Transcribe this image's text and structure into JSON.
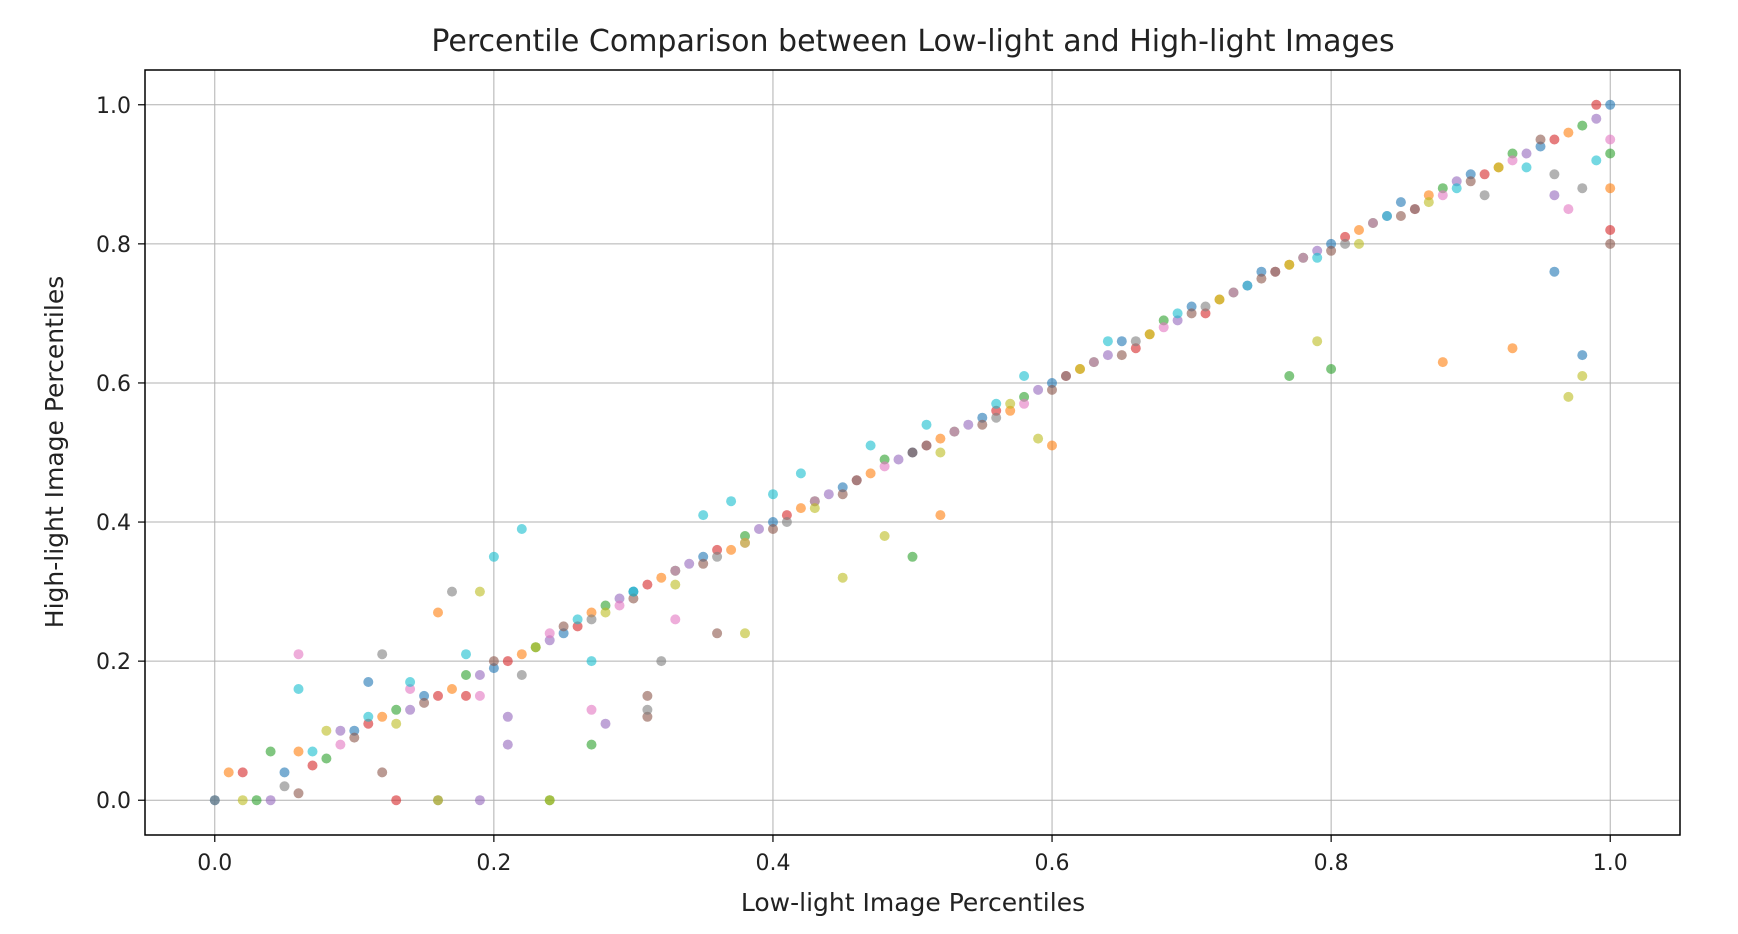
{
  "chart_data": {
    "type": "scatter",
    "title": "Percentile Comparison between Low-light and High-light Images",
    "xlabel": "Low-light Image Percentiles",
    "ylabel": "High-light Image Percentiles",
    "xlim": [
      -0.05,
      1.05
    ],
    "ylim": [
      -0.05,
      1.05
    ],
    "xticks": [
      "0.0",
      "0.2",
      "0.4",
      "0.6",
      "0.8",
      "1.0"
    ],
    "yticks": [
      "0.0",
      "0.2",
      "0.4",
      "0.6",
      "0.8",
      "1.0"
    ],
    "grid": true,
    "legend": "none",
    "colors": [
      "#1f77b4",
      "#ff7f0e",
      "#2ca02c",
      "#d62728",
      "#9467bd",
      "#8c564b",
      "#e377c2",
      "#7f7f7f",
      "#bcbd22",
      "#17becf"
    ],
    "series": [
      {
        "values": [
          [
            0.0,
            0.0
          ],
          [
            0.05,
            0.04
          ],
          [
            0.1,
            0.1
          ],
          [
            0.15,
            0.15
          ],
          [
            0.2,
            0.19
          ],
          [
            0.25,
            0.24
          ],
          [
            0.3,
            0.3
          ],
          [
            0.35,
            0.35
          ],
          [
            0.4,
            0.4
          ],
          [
            0.45,
            0.45
          ],
          [
            0.5,
            0.5
          ],
          [
            0.55,
            0.55
          ],
          [
            0.6,
            0.6
          ],
          [
            0.65,
            0.66
          ],
          [
            0.7,
            0.71
          ],
          [
            0.75,
            0.76
          ],
          [
            0.8,
            0.8
          ],
          [
            0.85,
            0.86
          ],
          [
            0.9,
            0.9
          ],
          [
            0.95,
            0.94
          ],
          [
            1.0,
            1.0
          ],
          [
            0.98,
            0.64
          ],
          [
            0.96,
            0.76
          ],
          [
            0.11,
            0.17
          ]
        ]
      },
      {
        "values": [
          [
            0.01,
            0.04
          ],
          [
            0.06,
            0.07
          ],
          [
            0.12,
            0.12
          ],
          [
            0.17,
            0.16
          ],
          [
            0.22,
            0.21
          ],
          [
            0.27,
            0.27
          ],
          [
            0.32,
            0.32
          ],
          [
            0.37,
            0.36
          ],
          [
            0.42,
            0.42
          ],
          [
            0.47,
            0.47
          ],
          [
            0.52,
            0.52
          ],
          [
            0.57,
            0.56
          ],
          [
            0.62,
            0.62
          ],
          [
            0.67,
            0.67
          ],
          [
            0.72,
            0.72
          ],
          [
            0.77,
            0.77
          ],
          [
            0.82,
            0.82
          ],
          [
            0.87,
            0.87
          ],
          [
            0.92,
            0.91
          ],
          [
            0.97,
            0.96
          ],
          [
            1.0,
            0.88
          ],
          [
            0.6,
            0.51
          ],
          [
            0.52,
            0.41
          ],
          [
            0.16,
            0.27
          ],
          [
            0.93,
            0.65
          ],
          [
            0.88,
            0.63
          ]
        ]
      },
      {
        "values": [
          [
            0.03,
            0.0
          ],
          [
            0.08,
            0.06
          ],
          [
            0.13,
            0.13
          ],
          [
            0.18,
            0.18
          ],
          [
            0.23,
            0.22
          ],
          [
            0.28,
            0.28
          ],
          [
            0.33,
            0.33
          ],
          [
            0.38,
            0.38
          ],
          [
            0.43,
            0.43
          ],
          [
            0.48,
            0.49
          ],
          [
            0.53,
            0.53
          ],
          [
            0.58,
            0.58
          ],
          [
            0.63,
            0.63
          ],
          [
            0.68,
            0.69
          ],
          [
            0.73,
            0.73
          ],
          [
            0.78,
            0.78
          ],
          [
            0.83,
            0.83
          ],
          [
            0.88,
            0.88
          ],
          [
            0.93,
            0.93
          ],
          [
            0.98,
            0.97
          ],
          [
            1.0,
            0.93
          ],
          [
            0.8,
            0.62
          ],
          [
            0.77,
            0.61
          ],
          [
            0.5,
            0.35
          ],
          [
            0.24,
            0.0
          ],
          [
            0.27,
            0.08
          ],
          [
            0.04,
            0.07
          ]
        ]
      },
      {
        "values": [
          [
            0.02,
            0.04
          ],
          [
            0.07,
            0.05
          ],
          [
            0.11,
            0.11
          ],
          [
            0.16,
            0.15
          ],
          [
            0.21,
            0.2
          ],
          [
            0.26,
            0.25
          ],
          [
            0.31,
            0.31
          ],
          [
            0.36,
            0.36
          ],
          [
            0.41,
            0.41
          ],
          [
            0.46,
            0.46
          ],
          [
            0.51,
            0.51
          ],
          [
            0.56,
            0.56
          ],
          [
            0.61,
            0.61
          ],
          [
            0.66,
            0.65
          ],
          [
            0.71,
            0.7
          ],
          [
            0.76,
            0.76
          ],
          [
            0.81,
            0.81
          ],
          [
            0.86,
            0.85
          ],
          [
            0.91,
            0.9
          ],
          [
            0.96,
            0.95
          ],
          [
            0.99,
            1.0
          ],
          [
            1.0,
            0.82
          ],
          [
            0.13,
            0.0
          ],
          [
            0.18,
            0.15
          ]
        ]
      },
      {
        "values": [
          [
            0.04,
            0.0
          ],
          [
            0.09,
            0.1
          ],
          [
            0.14,
            0.13
          ],
          [
            0.19,
            0.18
          ],
          [
            0.21,
            0.08
          ],
          [
            0.21,
            0.12
          ],
          [
            0.24,
            0.23
          ],
          [
            0.29,
            0.29
          ],
          [
            0.34,
            0.34
          ],
          [
            0.39,
            0.39
          ],
          [
            0.44,
            0.44
          ],
          [
            0.49,
            0.49
          ],
          [
            0.54,
            0.54
          ],
          [
            0.59,
            0.59
          ],
          [
            0.64,
            0.64
          ],
          [
            0.69,
            0.69
          ],
          [
            0.74,
            0.74
          ],
          [
            0.79,
            0.79
          ],
          [
            0.84,
            0.84
          ],
          [
            0.89,
            0.89
          ],
          [
            0.94,
            0.93
          ],
          [
            0.99,
            0.98
          ],
          [
            0.96,
            0.87
          ],
          [
            0.19,
            0.0
          ],
          [
            0.28,
            0.11
          ]
        ]
      },
      {
        "values": [
          [
            0.06,
            0.01
          ],
          [
            0.1,
            0.09
          ],
          [
            0.15,
            0.14
          ],
          [
            0.2,
            0.2
          ],
          [
            0.25,
            0.25
          ],
          [
            0.3,
            0.29
          ],
          [
            0.31,
            0.12
          ],
          [
            0.31,
            0.15
          ],
          [
            0.35,
            0.34
          ],
          [
            0.36,
            0.24
          ],
          [
            0.4,
            0.39
          ],
          [
            0.45,
            0.44
          ],
          [
            0.5,
            0.5
          ],
          [
            0.55,
            0.54
          ],
          [
            0.6,
            0.59
          ],
          [
            0.65,
            0.64
          ],
          [
            0.7,
            0.7
          ],
          [
            0.75,
            0.75
          ],
          [
            0.8,
            0.79
          ],
          [
            0.85,
            0.84
          ],
          [
            0.9,
            0.89
          ],
          [
            0.95,
            0.95
          ],
          [
            1.0,
            0.8
          ],
          [
            0.12,
            0.04
          ]
        ]
      },
      {
        "values": [
          [
            0.06,
            0.21
          ],
          [
            0.09,
            0.08
          ],
          [
            0.14,
            0.16
          ],
          [
            0.19,
            0.15
          ],
          [
            0.24,
            0.24
          ],
          [
            0.29,
            0.28
          ],
          [
            0.33,
            0.33
          ],
          [
            0.38,
            0.37
          ],
          [
            0.43,
            0.43
          ],
          [
            0.48,
            0.48
          ],
          [
            0.53,
            0.53
          ],
          [
            0.58,
            0.57
          ],
          [
            0.63,
            0.63
          ],
          [
            0.68,
            0.68
          ],
          [
            0.73,
            0.73
          ],
          [
            0.78,
            0.78
          ],
          [
            0.83,
            0.83
          ],
          [
            0.88,
            0.87
          ],
          [
            0.93,
            0.92
          ],
          [
            0.97,
            0.85
          ],
          [
            1.0,
            0.95
          ],
          [
            0.27,
            0.13
          ],
          [
            0.33,
            0.26
          ]
        ]
      },
      {
        "values": [
          [
            0.0,
            0.0
          ],
          [
            0.05,
            0.02
          ],
          [
            0.12,
            0.21
          ],
          [
            0.17,
            0.3
          ],
          [
            0.22,
            0.18
          ],
          [
            0.27,
            0.26
          ],
          [
            0.32,
            0.2
          ],
          [
            0.36,
            0.35
          ],
          [
            0.41,
            0.4
          ],
          [
            0.46,
            0.46
          ],
          [
            0.51,
            0.51
          ],
          [
            0.56,
            0.55
          ],
          [
            0.61,
            0.61
          ],
          [
            0.66,
            0.66
          ],
          [
            0.71,
            0.71
          ],
          [
            0.76,
            0.76
          ],
          [
            0.81,
            0.8
          ],
          [
            0.86,
            0.85
          ],
          [
            0.91,
            0.87
          ],
          [
            0.96,
            0.9
          ],
          [
            0.98,
            0.88
          ],
          [
            0.16,
            0.0
          ],
          [
            0.31,
            0.13
          ]
        ]
      },
      {
        "values": [
          [
            0.02,
            0.0
          ],
          [
            0.08,
            0.1
          ],
          [
            0.13,
            0.11
          ],
          [
            0.19,
            0.3
          ],
          [
            0.23,
            0.22
          ],
          [
            0.28,
            0.27
          ],
          [
            0.33,
            0.31
          ],
          [
            0.38,
            0.37
          ],
          [
            0.38,
            0.24
          ],
          [
            0.43,
            0.42
          ],
          [
            0.45,
            0.32
          ],
          [
            0.48,
            0.38
          ],
          [
            0.52,
            0.5
          ],
          [
            0.57,
            0.57
          ],
          [
            0.59,
            0.52
          ],
          [
            0.62,
            0.62
          ],
          [
            0.67,
            0.67
          ],
          [
            0.72,
            0.72
          ],
          [
            0.77,
            0.77
          ],
          [
            0.82,
            0.8
          ],
          [
            0.87,
            0.86
          ],
          [
            0.92,
            0.91
          ],
          [
            0.97,
            0.58
          ],
          [
            0.98,
            0.61
          ],
          [
            0.16,
            0.0
          ],
          [
            0.24,
            0.0
          ],
          [
            0.79,
            0.66
          ]
        ]
      },
      {
        "values": [
          [
            0.07,
            0.07
          ],
          [
            0.11,
            0.12
          ],
          [
            0.14,
            0.17
          ],
          [
            0.18,
            0.21
          ],
          [
            0.2,
            0.35
          ],
          [
            0.22,
            0.39
          ],
          [
            0.26,
            0.26
          ],
          [
            0.3,
            0.3
          ],
          [
            0.35,
            0.41
          ],
          [
            0.37,
            0.43
          ],
          [
            0.4,
            0.44
          ],
          [
            0.42,
            0.47
          ],
          [
            0.47,
            0.51
          ],
          [
            0.51,
            0.54
          ],
          [
            0.56,
            0.57
          ],
          [
            0.58,
            0.61
          ],
          [
            0.64,
            0.66
          ],
          [
            0.69,
            0.7
          ],
          [
            0.74,
            0.74
          ],
          [
            0.79,
            0.78
          ],
          [
            0.84,
            0.84
          ],
          [
            0.89,
            0.88
          ],
          [
            0.94,
            0.91
          ],
          [
            0.99,
            0.92
          ],
          [
            0.27,
            0.2
          ],
          [
            0.06,
            0.16
          ]
        ]
      }
    ]
  }
}
